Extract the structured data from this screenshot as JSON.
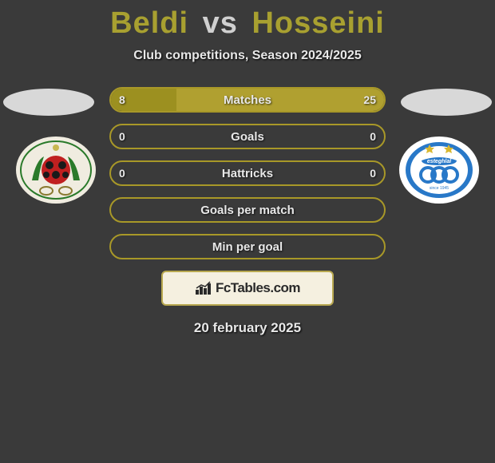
{
  "title": {
    "player1": "Beldi",
    "vs": "vs",
    "player2": "Hosseini"
  },
  "subtitle": "Club competitions, Season 2024/2025",
  "date": "20 february 2025",
  "logo": {
    "text": "FcTables.com"
  },
  "colors": {
    "bar_border": "#a89828",
    "fill_base": "#9c9020",
    "fill_accent": "#b0a030",
    "badge_left_bg": "#f0ece0",
    "badge_right_bg": "#ffffff"
  },
  "bars": [
    {
      "label": "Matches",
      "left_val": "8",
      "right_val": "25",
      "left_pct": 24,
      "right_pct": 76,
      "show_vals": true
    },
    {
      "label": "Goals",
      "left_val": "0",
      "right_val": "0",
      "left_pct": 0,
      "right_pct": 0,
      "show_vals": true
    },
    {
      "label": "Hattricks",
      "left_val": "0",
      "right_val": "0",
      "left_pct": 0,
      "right_pct": 0,
      "show_vals": true
    },
    {
      "label": "Goals per match",
      "left_val": "",
      "right_val": "",
      "left_pct": 0,
      "right_pct": 0,
      "show_vals": false
    },
    {
      "label": "Min per goal",
      "left_val": "",
      "right_val": "",
      "left_pct": 0,
      "right_pct": 0,
      "show_vals": false
    }
  ]
}
